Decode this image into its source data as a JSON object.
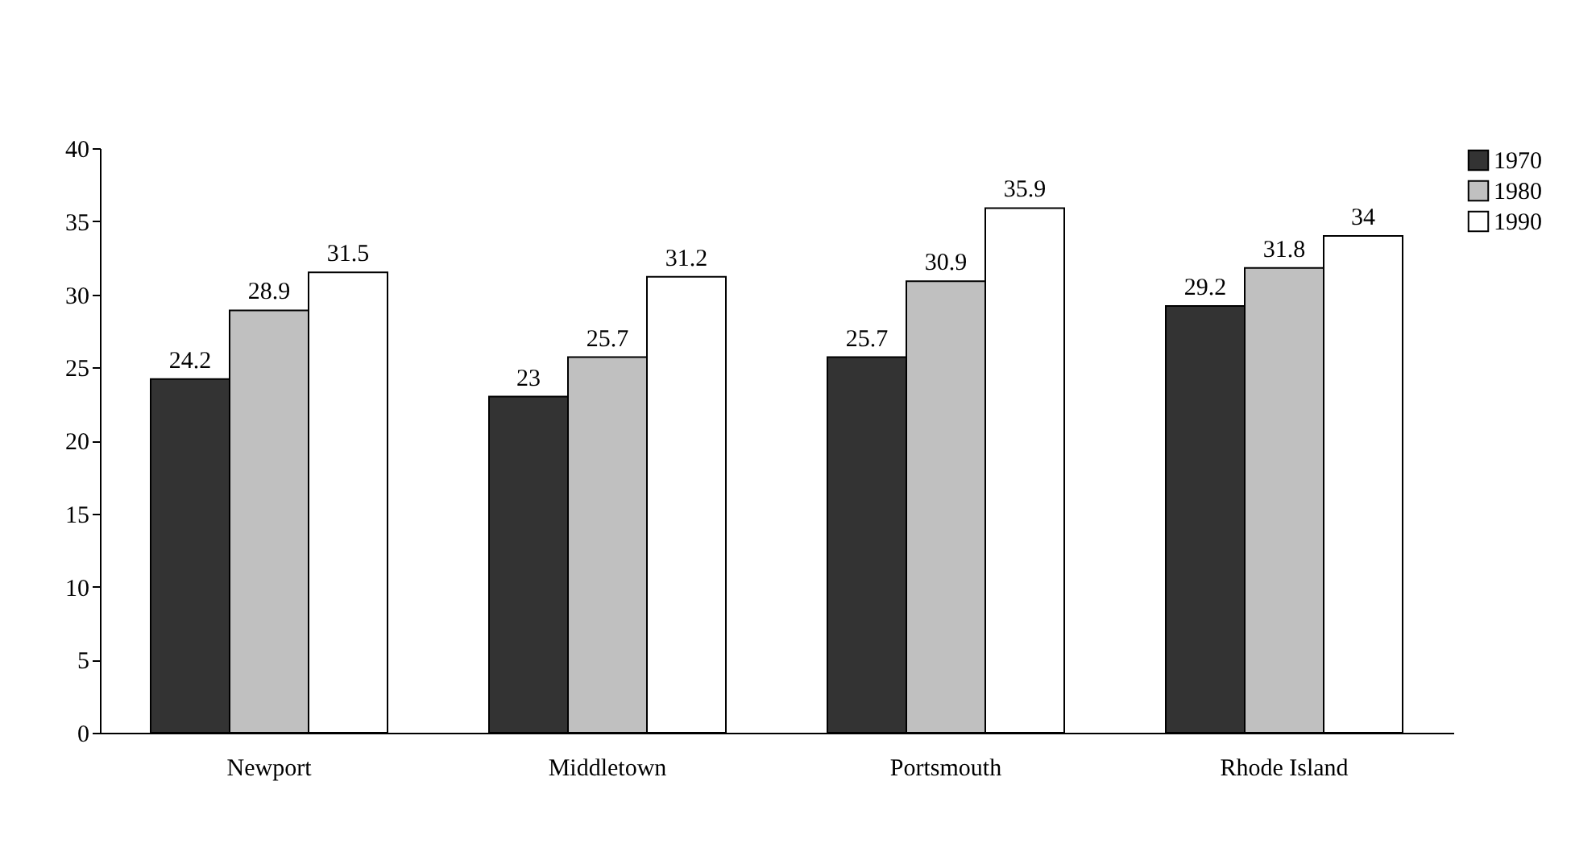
{
  "chart_data": {
    "type": "bar",
    "categories": [
      "Newport",
      "Middletown",
      "Portsmouth",
      "Rhode Island"
    ],
    "series": [
      {
        "name": "1970",
        "color": "#333333",
        "values": [
          24.2,
          23,
          25.7,
          29.2
        ]
      },
      {
        "name": "1980",
        "color": "#c0c0c0",
        "values": [
          28.9,
          25.7,
          30.9,
          31.8
        ]
      },
      {
        "name": "1990",
        "color": "#ffffff",
        "values": [
          31.5,
          31.2,
          35.9,
          34
        ]
      }
    ],
    "ylim": [
      0,
      40
    ],
    "yticks": [
      0,
      5,
      10,
      15,
      20,
      25,
      30,
      35,
      40
    ],
    "grid": false,
    "legend": "right",
    "data_labels": true
  }
}
